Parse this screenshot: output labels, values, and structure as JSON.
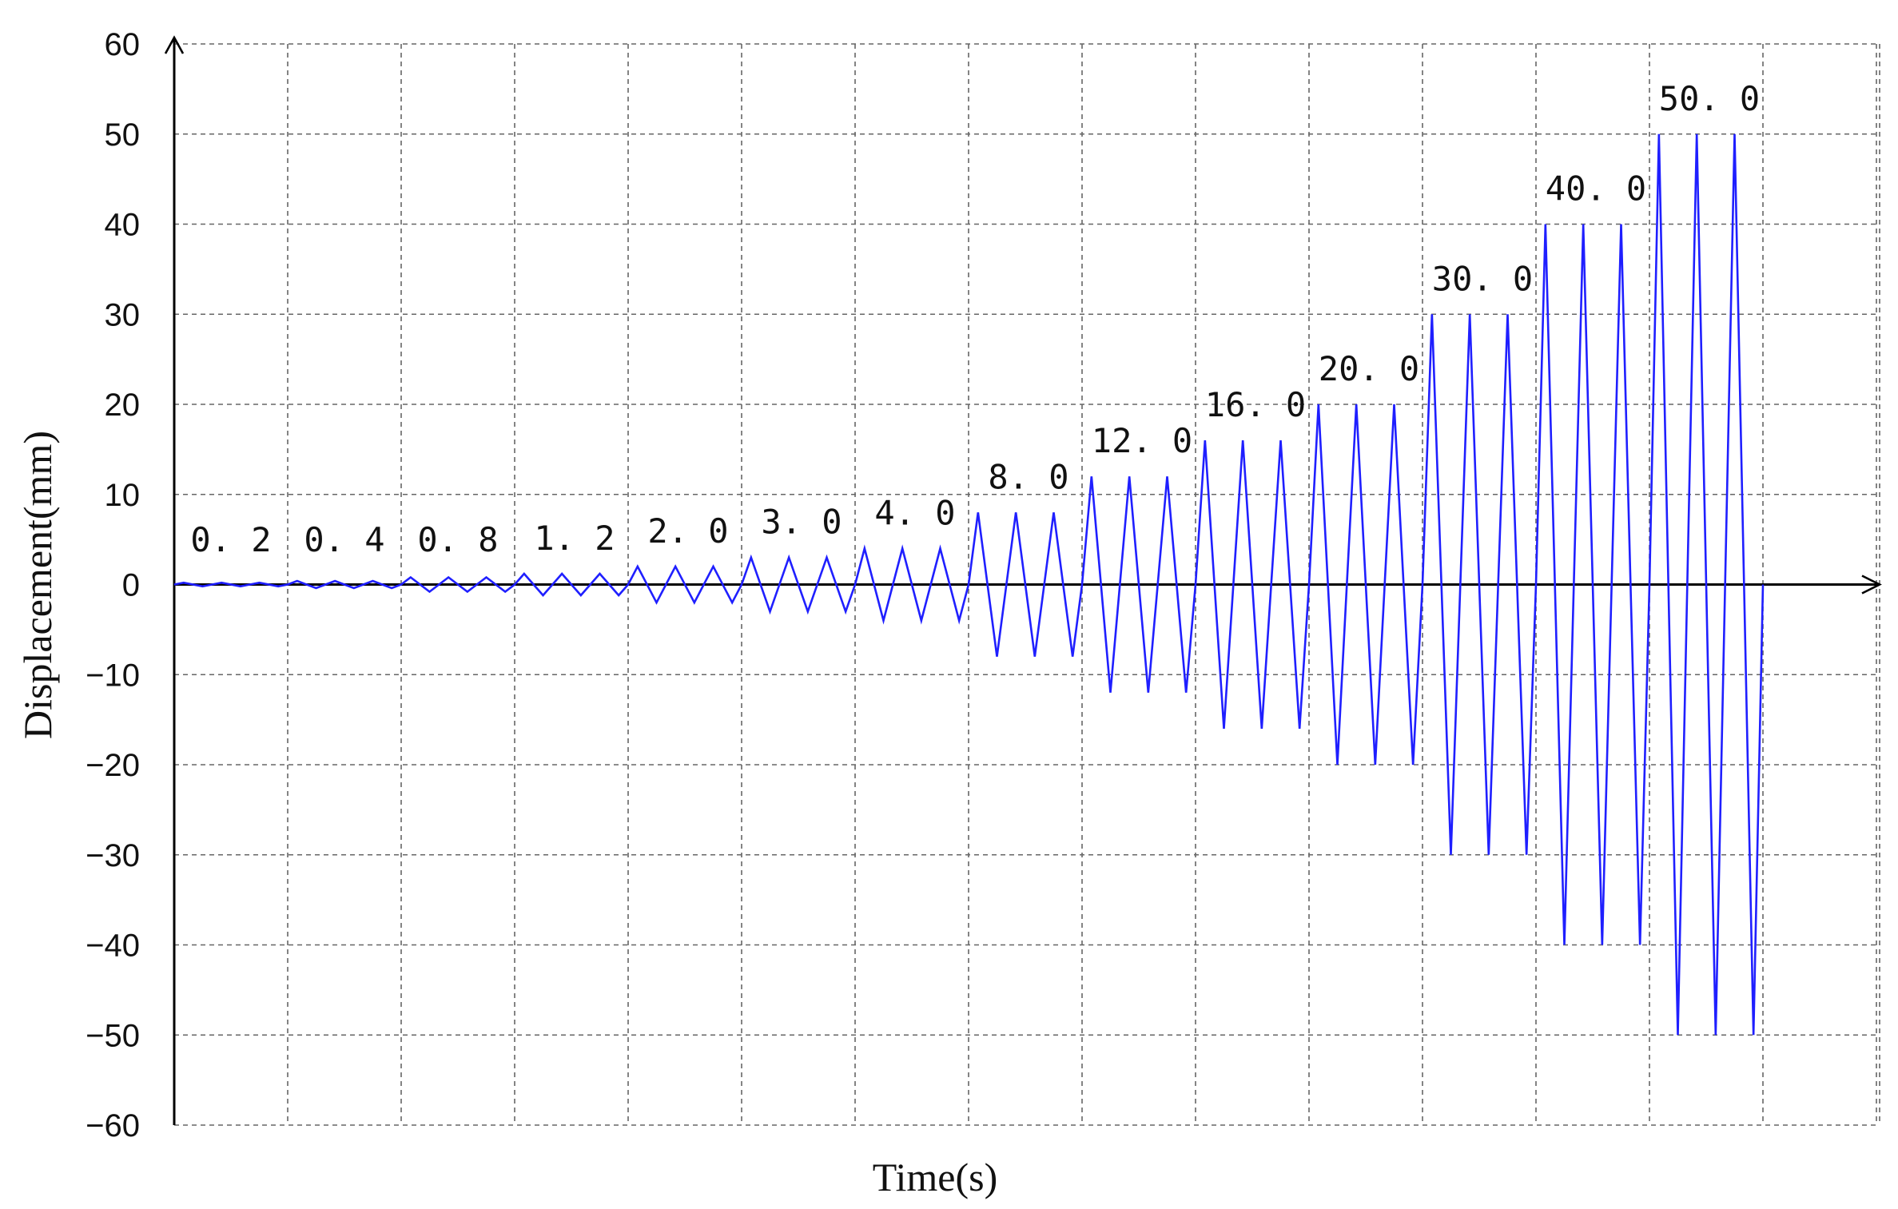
{
  "chart_data": {
    "type": "line",
    "title": "",
    "xlabel": "Time(s)",
    "ylabel": "Displacement(mm)",
    "ylim": [
      -60,
      60
    ],
    "yticks": [
      60,
      50,
      40,
      30,
      20,
      10,
      0,
      -10,
      -20,
      -30,
      -40,
      -50,
      -60
    ],
    "grid": true,
    "series_color": "#1f1fff",
    "x_units": "cycle index",
    "levels": [
      {
        "label": "0. 2",
        "amplitude": 0.2,
        "cycles": 3
      },
      {
        "label": "0. 4",
        "amplitude": 0.4,
        "cycles": 3
      },
      {
        "label": "0. 8",
        "amplitude": 0.8,
        "cycles": 3
      },
      {
        "label": "1. 2",
        "amplitude": 1.2,
        "cycles": 3
      },
      {
        "label": "2. 0",
        "amplitude": 2.0,
        "cycles": 3
      },
      {
        "label": "3. 0",
        "amplitude": 3.0,
        "cycles": 3
      },
      {
        "label": "4. 0",
        "amplitude": 4.0,
        "cycles": 3
      },
      {
        "label": "8. 0",
        "amplitude": 8.0,
        "cycles": 3
      },
      {
        "label": "12. 0",
        "amplitude": 12.0,
        "cycles": 3
      },
      {
        "label": "16. 0",
        "amplitude": 16.0,
        "cycles": 3
      },
      {
        "label": "20. 0",
        "amplitude": 20.0,
        "cycles": 3
      },
      {
        "label": "30. 0",
        "amplitude": 30.0,
        "cycles": 3
      },
      {
        "label": "40. 0",
        "amplitude": 40.0,
        "cycles": 3
      },
      {
        "label": "50. 0",
        "amplitude": 50.0,
        "cycles": 3
      }
    ]
  }
}
